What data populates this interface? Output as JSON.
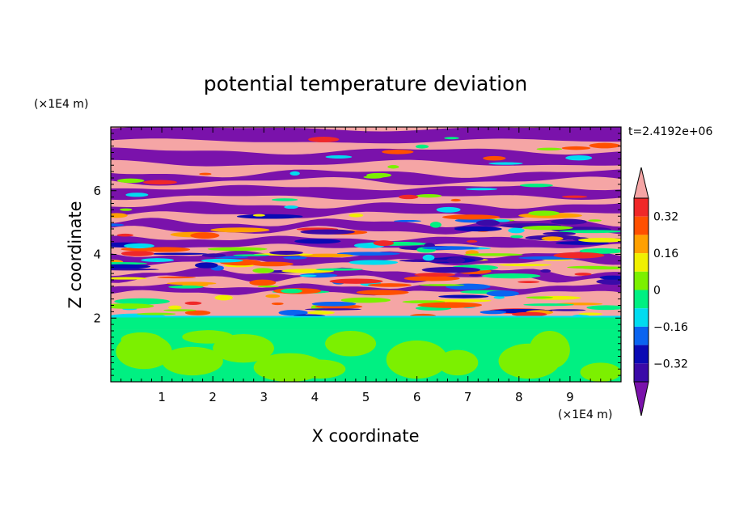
{
  "chart_data": {
    "type": "heatmap",
    "title": "potential temperature deviation",
    "xlabel": "X coordinate",
    "ylabel": "Z coordinate",
    "x_unit": "(×1E4 m)",
    "y_unit": "(×1E4 m)",
    "time_label": "t=2.4192e+06",
    "xlim": [
      0,
      10
    ],
    "ylim": [
      0,
      8
    ],
    "x_ticks": [
      1,
      2,
      3,
      4,
      5,
      6,
      7,
      8,
      9
    ],
    "y_ticks": [
      2,
      4,
      6
    ],
    "colorbar": {
      "levels": [
        -0.4,
        -0.32,
        -0.24,
        -0.16,
        -0.08,
        0,
        0.08,
        0.16,
        0.24,
        0.32,
        0.4
      ],
      "labels": [
        "0.32",
        "0.16",
        "0",
        "−0.16",
        "−0.32"
      ],
      "colors": [
        "#7a12ab",
        "#3a0aa8",
        "#0a0ab4",
        "#0a64f0",
        "#00dcf0",
        "#00f082",
        "#7cf000",
        "#f0f000",
        "#ffa000",
        "#ff5000",
        "#f02828",
        "#f5a5a5"
      ],
      "extend": "both"
    },
    "layers": [
      {
        "z_range": [
          0,
          1.65
        ],
        "value": "0 to 0.08 (green/lime patches)"
      },
      {
        "z_range": [
          1.65,
          2.05
        ],
        "value": "0 (green band)"
      },
      {
        "z_range": [
          2.05,
          5.0
        ],
        "value": "mixed -0.4 to 0.4 (turbulent layers)"
      },
      {
        "z_range": [
          5.0,
          8.0
        ],
        "value": "alternating > 0.4 and < -0.4 bands"
      }
    ]
  }
}
